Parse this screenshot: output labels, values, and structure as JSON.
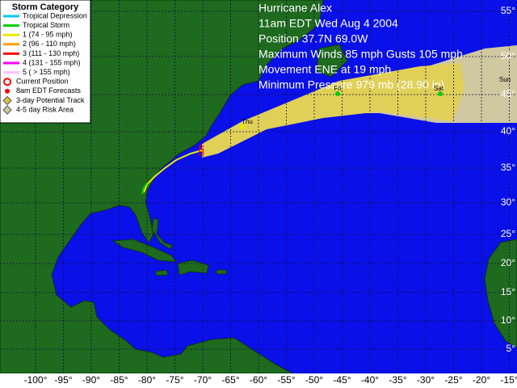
{
  "legend": {
    "title": "Storm Category",
    "items": [
      {
        "label": "Tropical Depression",
        "color": "#00c8ff",
        "kind": "line"
      },
      {
        "label": "Tropical Storm",
        "color": "#00d000",
        "kind": "line"
      },
      {
        "label": "1  (74 - 95 mph)",
        "color": "#e8e800",
        "kind": "line"
      },
      {
        "label": "2  (96 - 110 mph)",
        "color": "#ffa000",
        "kind": "line"
      },
      {
        "label": "3  (111 - 130 mph)",
        "color": "#ff0000",
        "kind": "line"
      },
      {
        "label": "4  (131 - 155 mph)",
        "color": "#ff00ff",
        "kind": "line"
      },
      {
        "label": "5  ( > 155 mph)",
        "color": "#ffc0ff",
        "kind": "line"
      },
      {
        "label": "Current Position",
        "color": "#ff0000",
        "kind": "symbol"
      },
      {
        "label": "8am EDT Forecasts",
        "color": "#ff0000",
        "kind": "dot"
      },
      {
        "label": "3-day Potential Track",
        "color": "#d8c040",
        "kind": "area"
      },
      {
        "label": "4-5 day Risk Area",
        "color": "#d0c8a0",
        "kind": "area"
      }
    ]
  },
  "info": [
    "Hurricane Alex",
    "11am EDT Wed Aug 4 2004",
    "Position 37.7N 69.0W",
    "Maximum Winds 85 mph Gusts 105 mph",
    "Movement ENE at 19 mph",
    "Minimum Pressure 979 mb (28.90 in)"
  ],
  "forecast_labels": [
    "Thu",
    "Fri",
    "Sat",
    "Sun"
  ],
  "longitude_labels": [
    "-100°",
    "-95°",
    "-90°",
    "-85°",
    "-80°",
    "-75°",
    "-70°",
    "-65°",
    "-60°",
    "-55°",
    "-50°",
    "-45°",
    "-40°",
    "-35°",
    "-30°",
    "-25°",
    "-20°",
    "-15°"
  ],
  "latitude_labels": [
    "55°",
    "50°",
    "45°",
    "40°",
    "35°",
    "30°",
    "25°",
    "20°",
    "15°",
    "10°",
    "5°"
  ]
}
